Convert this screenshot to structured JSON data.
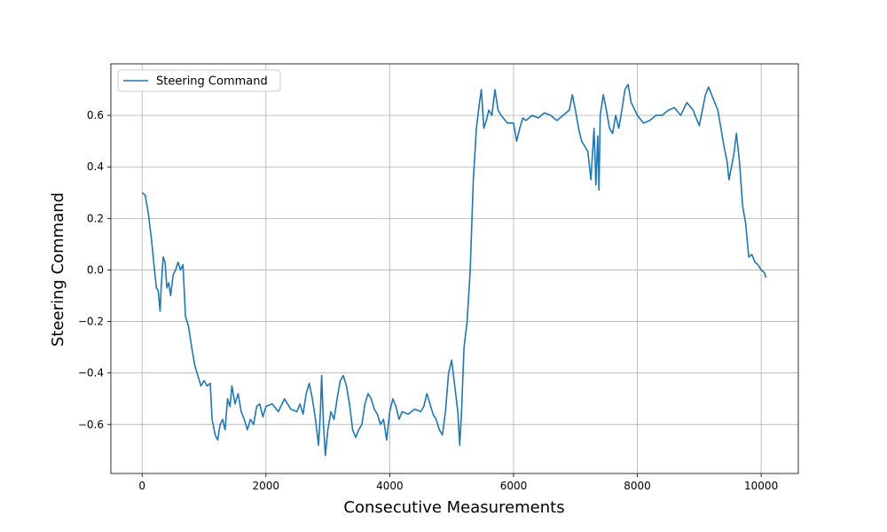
{
  "chart_data": {
    "type": "line",
    "xlabel": "Consecutive Measurements",
    "ylabel": "Steering Command",
    "xlim": [
      -505,
      10600
    ],
    "ylim": [
      -0.79,
      0.8
    ],
    "xticks": [
      0,
      2000,
      4000,
      6000,
      8000,
      10000
    ],
    "yticks": [
      {
        "value": -0.6,
        "label": "−0.6"
      },
      {
        "value": -0.4,
        "label": "−0.4"
      },
      {
        "value": -0.2,
        "label": "−0.2"
      },
      {
        "value": 0,
        "label": "0.0"
      },
      0.2,
      0.4,
      0.6
    ],
    "grid": true,
    "legend": "upper left",
    "series": [
      {
        "name": "Steering Command",
        "color": "#1f77b4",
        "x": [
          0,
          50,
          100,
          150,
          200,
          230,
          260,
          290,
          310,
          340,
          370,
          400,
          430,
          460,
          500,
          540,
          580,
          620,
          660,
          700,
          750,
          800,
          850,
          900,
          950,
          1000,
          1050,
          1100,
          1130,
          1180,
          1220,
          1260,
          1300,
          1340,
          1380,
          1420,
          1450,
          1500,
          1550,
          1600,
          1650,
          1700,
          1750,
          1800,
          1850,
          1900,
          1950,
          2000,
          2100,
          2200,
          2300,
          2400,
          2500,
          2550,
          2600,
          2650,
          2700,
          2750,
          2800,
          2850,
          2880,
          2900,
          2930,
          2960,
          3000,
          3050,
          3100,
          3150,
          3200,
          3250,
          3300,
          3350,
          3400,
          3450,
          3500,
          3550,
          3600,
          3650,
          3700,
          3750,
          3800,
          3850,
          3900,
          3950,
          4000,
          4050,
          4100,
          4150,
          4200,
          4300,
          4400,
          4500,
          4550,
          4600,
          4650,
          4700,
          4750,
          4800,
          4850,
          4900,
          4950,
          5000,
          5050,
          5100,
          5130,
          5160,
          5200,
          5250,
          5300,
          5350,
          5400,
          5450,
          5480,
          5520,
          5560,
          5600,
          5650,
          5700,
          5750,
          5800,
          5900,
          6000,
          6050,
          6100,
          6150,
          6200,
          6300,
          6400,
          6500,
          6600,
          6700,
          6800,
          6900,
          6950,
          7000,
          7050,
          7100,
          7150,
          7200,
          7250,
          7300,
          7330,
          7360,
          7380,
          7400,
          7450,
          7500,
          7550,
          7600,
          7650,
          7700,
          7750,
          7800,
          7850,
          7900,
          8000,
          8100,
          8200,
          8300,
          8400,
          8500,
          8600,
          8700,
          8800,
          8900,
          9000,
          9050,
          9100,
          9150,
          9200,
          9300,
          9350,
          9400,
          9450,
          9480,
          9520,
          9560,
          9600,
          9650,
          9700,
          9750,
          9800,
          9850,
          9900,
          9950,
          10000,
          10050,
          10080
        ],
        "values": [
          0.3,
          0.29,
          0.22,
          0.12,
          0.0,
          -0.07,
          -0.08,
          -0.16,
          -0.06,
          0.05,
          0.03,
          -0.07,
          -0.05,
          -0.1,
          -0.02,
          0.0,
          0.03,
          0.0,
          0.02,
          -0.18,
          -0.22,
          -0.3,
          -0.37,
          -0.41,
          -0.45,
          -0.43,
          -0.45,
          -0.44,
          -0.58,
          -0.64,
          -0.66,
          -0.6,
          -0.58,
          -0.62,
          -0.5,
          -0.53,
          -0.45,
          -0.52,
          -0.48,
          -0.55,
          -0.58,
          -0.62,
          -0.58,
          -0.6,
          -0.53,
          -0.52,
          -0.57,
          -0.53,
          -0.52,
          -0.55,
          -0.5,
          -0.54,
          -0.55,
          -0.52,
          -0.56,
          -0.48,
          -0.44,
          -0.5,
          -0.58,
          -0.68,
          -0.55,
          -0.41,
          -0.6,
          -0.72,
          -0.62,
          -0.55,
          -0.58,
          -0.5,
          -0.43,
          -0.41,
          -0.45,
          -0.52,
          -0.62,
          -0.65,
          -0.62,
          -0.6,
          -0.52,
          -0.48,
          -0.5,
          -0.54,
          -0.56,
          -0.6,
          -0.58,
          -0.66,
          -0.55,
          -0.5,
          -0.53,
          -0.58,
          -0.55,
          -0.56,
          -0.54,
          -0.55,
          -0.53,
          -0.48,
          -0.52,
          -0.56,
          -0.58,
          -0.62,
          -0.64,
          -0.55,
          -0.4,
          -0.35,
          -0.45,
          -0.55,
          -0.68,
          -0.55,
          -0.3,
          -0.2,
          0.0,
          0.35,
          0.55,
          0.65,
          0.7,
          0.55,
          0.58,
          0.62,
          0.6,
          0.7,
          0.62,
          0.6,
          0.57,
          0.57,
          0.5,
          0.55,
          0.59,
          0.58,
          0.6,
          0.59,
          0.61,
          0.6,
          0.58,
          0.6,
          0.62,
          0.68,
          0.62,
          0.55,
          0.5,
          0.48,
          0.46,
          0.35,
          0.55,
          0.33,
          0.52,
          0.31,
          0.6,
          0.68,
          0.62,
          0.55,
          0.53,
          0.6,
          0.55,
          0.62,
          0.7,
          0.72,
          0.65,
          0.6,
          0.57,
          0.58,
          0.6,
          0.6,
          0.62,
          0.63,
          0.6,
          0.65,
          0.62,
          0.56,
          0.62,
          0.68,
          0.71,
          0.68,
          0.62,
          0.55,
          0.48,
          0.42,
          0.35,
          0.4,
          0.45,
          0.53,
          0.42,
          0.25,
          0.18,
          0.05,
          0.06,
          0.03,
          0.02,
          0.0,
          -0.01,
          -0.03
        ]
      }
    ]
  }
}
